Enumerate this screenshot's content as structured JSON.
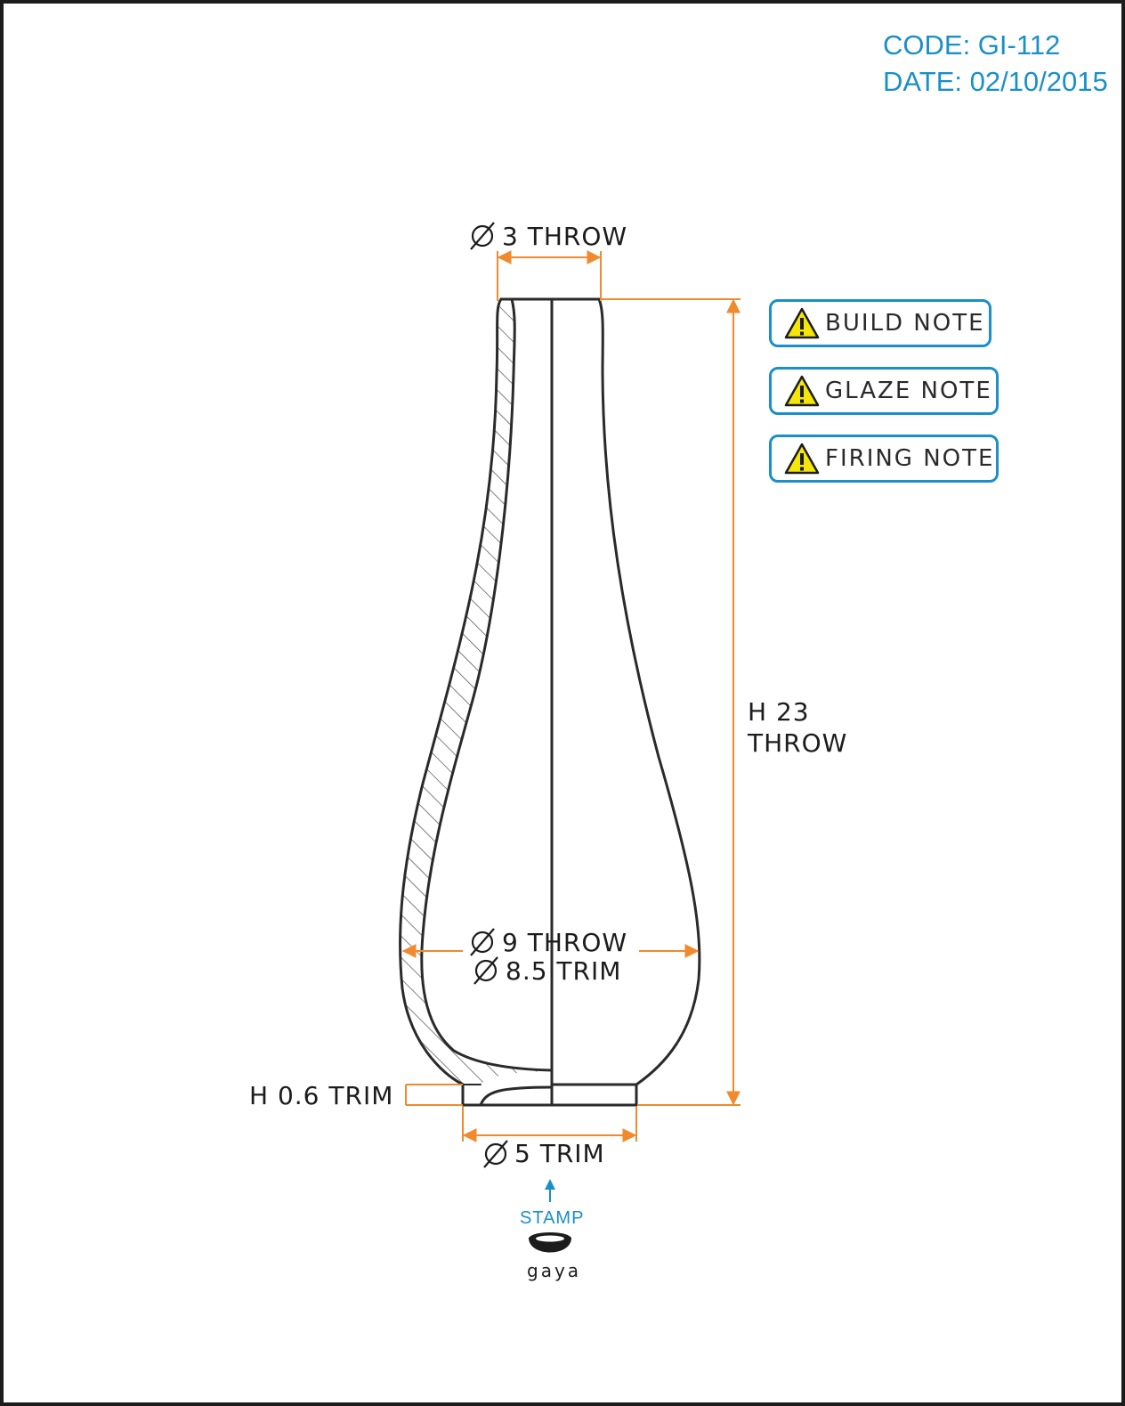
{
  "header": {
    "code": "CODE: GI-112",
    "date": "DATE: 02/10/2015"
  },
  "notes": [
    {
      "label": "BUILD NOTE",
      "icon": "warning-icon"
    },
    {
      "label": "GLAZE NOTE",
      "icon": "warning-icon"
    },
    {
      "label": "FIRING NOTE",
      "icon": "warning-icon"
    }
  ],
  "dimensions": {
    "top_diameter": "3 THROW",
    "body_diameter_throw": "9 THROW",
    "body_diameter_trim": "8.5 TRIM",
    "height_line1": "H 23",
    "height_line2": "THROW",
    "foot_height": "H 0.6 TRIM",
    "foot_diameter": "5 TRIM"
  },
  "stamp": {
    "label": "STAMP",
    "brand": "gaya"
  },
  "colors": {
    "accent": "#1a8fc8",
    "dimension": "#f08a2c",
    "outline": "#2a2a2a"
  }
}
